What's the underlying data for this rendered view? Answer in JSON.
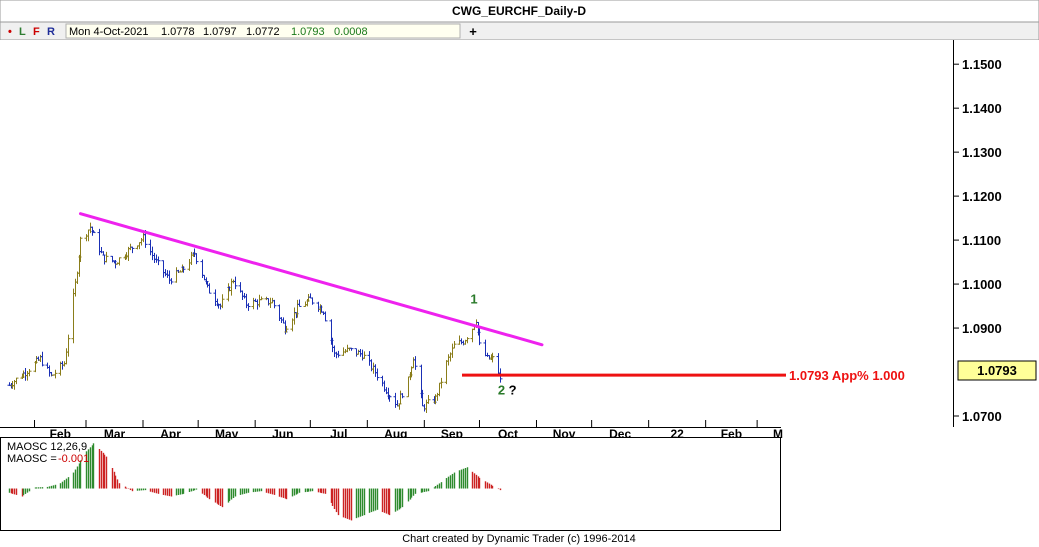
{
  "window": {
    "title": "CWG_EURCHF_Daily-D"
  },
  "toolbar": {
    "indicators": [
      {
        "label": "•",
        "color": "#cc0000"
      },
      {
        "label": "L",
        "color": "#2e7d32"
      },
      {
        "label": "F",
        "color": "#cc0000"
      },
      {
        "label": "R",
        "color": "#1f2d99"
      }
    ],
    "quote": {
      "date": "Mon 4-Oct-2021",
      "open": "1.0778",
      "high": "1.0797",
      "low": "1.0772",
      "close": "1.0793",
      "change": "0.0008"
    },
    "add_symbol": "+"
  },
  "colors": {
    "bar_up": "#8a7d1a",
    "bar_down": "#1a2fb5",
    "trendline": "#ee22ee",
    "level_line": "#ee1111",
    "osc_pos": "#2e8b2e",
    "osc_neg": "#cc2222",
    "wave_label": "#2a7a2a"
  },
  "chart_data": [
    {
      "type": "ohlc",
      "symbol": "CWG_EURCHF_Daily-D",
      "x_ticks": [
        "Feb",
        "Mar",
        "Apr",
        "May",
        "Jun",
        "Jul",
        "Aug",
        "Sep",
        "Oct",
        "Nov",
        "Dec",
        "22",
        "Feb",
        "M"
      ],
      "y_ticks": [
        "1.1500",
        "1.1400",
        "1.1300",
        "1.1200",
        "1.1100",
        "1.1000",
        "1.0900",
        "1.0793",
        "1.0700"
      ],
      "ylim": [
        1.0675,
        1.1555
      ],
      "path_keypoints": [
        [
          "2021-01-18",
          1.077
        ],
        [
          "2021-01-27",
          1.08
        ],
        [
          "2021-02-04",
          1.083
        ],
        [
          "2021-02-10",
          1.079
        ],
        [
          "2021-02-17",
          1.082
        ],
        [
          "2021-02-19",
          1.088
        ],
        [
          "2021-02-23",
          1.1
        ],
        [
          "2021-02-26",
          1.11
        ],
        [
          "2021-03-03",
          1.113
        ],
        [
          "2021-03-10",
          1.106
        ],
        [
          "2021-03-17",
          1.105
        ],
        [
          "2021-03-25",
          1.108
        ],
        [
          "2021-04-01",
          1.1105
        ],
        [
          "2021-04-08",
          1.105
        ],
        [
          "2021-04-15",
          1.101
        ],
        [
          "2021-04-22",
          1.103
        ],
        [
          "2021-04-29",
          1.107
        ],
        [
          "2021-05-06",
          1.099
        ],
        [
          "2021-05-13",
          1.095
        ],
        [
          "2021-05-20",
          1.101
        ],
        [
          "2021-05-27",
          1.0955
        ],
        [
          "2021-06-03",
          1.096
        ],
        [
          "2021-06-10",
          1.096
        ],
        [
          "2021-06-17",
          1.09
        ],
        [
          "2021-06-24",
          1.0945
        ],
        [
          "2021-07-01",
          1.0965
        ],
        [
          "2021-07-08",
          1.094
        ],
        [
          "2021-07-14",
          1.084
        ],
        [
          "2021-07-22",
          1.085
        ],
        [
          "2021-07-29",
          1.084
        ],
        [
          "2021-08-05",
          1.08
        ],
        [
          "2021-08-11",
          1.076
        ],
        [
          "2021-08-17",
          1.0725
        ],
        [
          "2021-08-23",
          1.078
        ],
        [
          "2021-08-26",
          1.0835
        ],
        [
          "2021-08-31",
          1.072
        ],
        [
          "2021-09-07",
          1.074
        ],
        [
          "2021-09-13",
          1.082
        ],
        [
          "2021-09-17",
          1.086
        ],
        [
          "2021-09-22",
          1.087
        ],
        [
          "2021-09-27",
          1.09
        ],
        [
          "2021-09-29",
          1.092
        ],
        [
          "2021-10-01",
          1.086
        ],
        [
          "2021-10-05",
          1.083
        ],
        [
          "2021-10-08",
          1.083
        ],
        [
          "2021-10-11",
          1.08
        ],
        [
          "2021-10-12",
          1.078
        ]
      ],
      "trendline": {
        "from": [
          "2021-02-26",
          1.116
        ],
        "to": [
          "2021-11-04",
          1.0862
        ]
      },
      "level": {
        "value": 1.0793,
        "label": "1.0793 App% 1.000"
      },
      "last_price": "1.0793",
      "wave_labels": [
        {
          "text": "1",
          "date": "2021-09-28",
          "price": 1.0967
        },
        {
          "text": "2",
          "date": "2021-10-13",
          "price": 1.076
        },
        {
          "text": "?",
          "date": "2021-10-19",
          "price": 1.076
        }
      ],
      "grid": false
    },
    {
      "type": "histogram",
      "name": "MAOSC 12,26,9",
      "value_label": "MAOSC =",
      "value": "-0.001",
      "ylim": [
        -0.0078,
        0.0095
      ],
      "shape_keypoints": [
        [
          "2021-01-18",
          -0.0008
        ],
        [
          "2021-01-25",
          -0.0015
        ],
        [
          "2021-02-01",
          0.0002
        ],
        [
          "2021-02-08",
          0.0003
        ],
        [
          "2021-02-15",
          0.001
        ],
        [
          "2021-02-22",
          0.003
        ],
        [
          "2021-03-01",
          0.007
        ],
        [
          "2021-03-05",
          0.0085
        ],
        [
          "2021-03-12",
          0.006
        ],
        [
          "2021-03-19",
          0.001
        ],
        [
          "2021-03-26",
          -0.0005
        ],
        [
          "2021-04-02",
          -0.0003
        ],
        [
          "2021-04-09",
          -0.001
        ],
        [
          "2021-04-16",
          -0.0015
        ],
        [
          "2021-04-23",
          -0.001
        ],
        [
          "2021-04-30",
          -0.0002
        ],
        [
          "2021-05-07",
          -0.002
        ],
        [
          "2021-05-14",
          -0.0035
        ],
        [
          "2021-05-21",
          -0.0015
        ],
        [
          "2021-05-28",
          -0.0008
        ],
        [
          "2021-06-04",
          -0.0005
        ],
        [
          "2021-06-11",
          -0.0012
        ],
        [
          "2021-06-18",
          -0.002
        ],
        [
          "2021-06-25",
          -0.0008
        ],
        [
          "2021-07-02",
          -0.0005
        ],
        [
          "2021-07-09",
          -0.001
        ],
        [
          "2021-07-16",
          -0.005
        ],
        [
          "2021-07-23",
          -0.006
        ],
        [
          "2021-07-30",
          -0.005
        ],
        [
          "2021-08-06",
          -0.004
        ],
        [
          "2021-08-13",
          -0.005
        ],
        [
          "2021-08-20",
          -0.0035
        ],
        [
          "2021-08-27",
          -0.001
        ],
        [
          "2021-09-03",
          -0.0005
        ],
        [
          "2021-09-10",
          0.0012
        ],
        [
          "2021-09-17",
          0.003
        ],
        [
          "2021-09-24",
          0.004
        ],
        [
          "2021-10-01",
          0.002
        ],
        [
          "2021-10-08",
          0.0005
        ],
        [
          "2021-10-12",
          -0.0003
        ]
      ]
    }
  ],
  "footer": {
    "credit": "Chart created by Dynamic Trader  (c) 1996-2014"
  }
}
